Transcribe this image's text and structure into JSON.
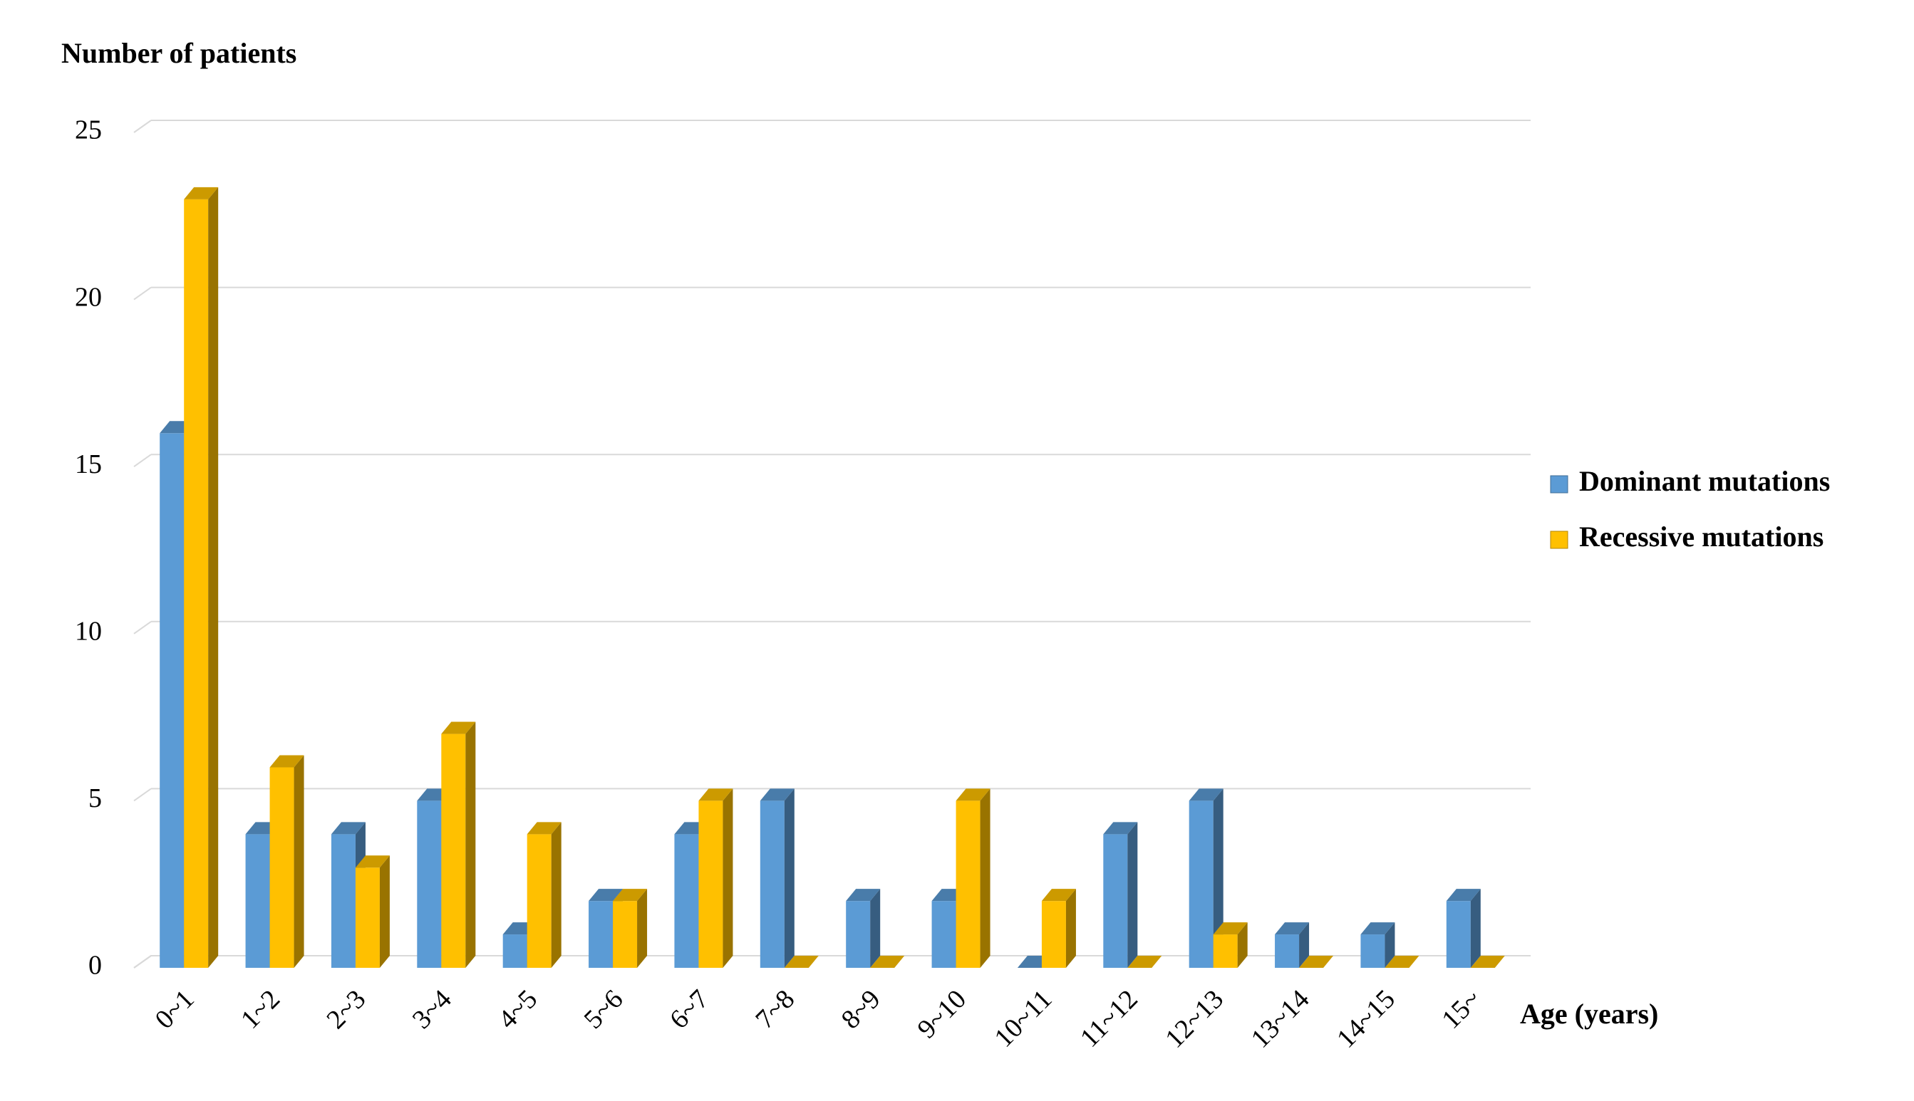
{
  "chart_data": {
    "type": "bar",
    "y_label": "Number of patients",
    "x_label": "Age (years)",
    "categories": [
      "0~1",
      "1~2",
      "2~3",
      "3~4",
      "4~5",
      "5~6",
      "6~7",
      "7~8",
      "8~9",
      "9~10",
      "10~11",
      "11~12",
      "12~13",
      "13~14",
      "14~15",
      "15~"
    ],
    "series": [
      {
        "name": "Dominant mutations",
        "color": "#5b9bd5",
        "values": [
          16,
          4,
          4,
          5,
          1,
          2,
          4,
          5,
          2,
          2,
          0,
          4,
          5,
          1,
          1,
          2
        ]
      },
      {
        "name": "Recessive mutations",
        "color": "#ffc000",
        "values": [
          23,
          6,
          3,
          7,
          4,
          2,
          5,
          0,
          0,
          5,
          2,
          0,
          1,
          0,
          0,
          0
        ]
      }
    ],
    "ylim": [
      0,
      25
    ],
    "yticks": [
      0,
      5,
      10,
      15,
      20,
      25
    ],
    "grid": true,
    "legend": "right"
  }
}
